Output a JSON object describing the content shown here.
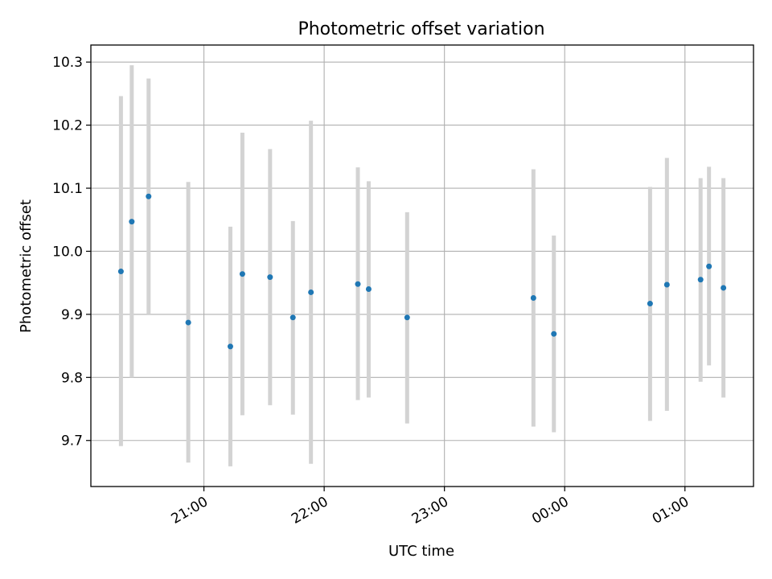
{
  "chart_data": {
    "type": "scatter",
    "title": "Photometric offset variation",
    "xlabel": "UTC time",
    "ylabel": "Photometric offset",
    "x_axis": {
      "unit": "hours after 21:00 UTC",
      "range": [
        -0.94,
        4.57
      ],
      "ticks": [
        {
          "value": 0,
          "label": "21:00"
        },
        {
          "value": 1,
          "label": "22:00"
        },
        {
          "value": 2,
          "label": "23:00"
        },
        {
          "value": 3,
          "label": "00:00"
        },
        {
          "value": 4,
          "label": "01:00"
        }
      ]
    },
    "y_axis": {
      "range": [
        9.627,
        10.327
      ],
      "ticks": [
        {
          "value": 9.7,
          "label": "9.7"
        },
        {
          "value": 9.8,
          "label": "9.8"
        },
        {
          "value": 9.9,
          "label": "9.9"
        },
        {
          "value": 10.0,
          "label": "10.0"
        },
        {
          "value": 10.1,
          "label": "10.1"
        },
        {
          "value": 10.2,
          "label": "10.2"
        },
        {
          "value": 10.3,
          "label": "10.3"
        }
      ]
    },
    "grid": true,
    "point_color": "#1f77b4",
    "errorbar_color": "#d3d3d3",
    "points": [
      {
        "x": -0.69,
        "y": 9.968,
        "ylow": 9.691,
        "yhigh": 10.246
      },
      {
        "x": -0.6,
        "y": 10.047,
        "ylow": 9.8,
        "yhigh": 10.295
      },
      {
        "x": -0.46,
        "y": 10.087,
        "ylow": 9.9,
        "yhigh": 10.274
      },
      {
        "x": -0.13,
        "y": 9.887,
        "ylow": 9.665,
        "yhigh": 10.11
      },
      {
        "x": 0.22,
        "y": 9.849,
        "ylow": 9.659,
        "yhigh": 10.039
      },
      {
        "x": 0.32,
        "y": 9.964,
        "ylow": 9.74,
        "yhigh": 10.188
      },
      {
        "x": 0.55,
        "y": 9.959,
        "ylow": 9.756,
        "yhigh": 10.162
      },
      {
        "x": 0.74,
        "y": 9.895,
        "ylow": 9.741,
        "yhigh": 10.048
      },
      {
        "x": 0.89,
        "y": 9.935,
        "ylow": 9.663,
        "yhigh": 10.207
      },
      {
        "x": 1.28,
        "y": 9.948,
        "ylow": 9.764,
        "yhigh": 10.133
      },
      {
        "x": 1.37,
        "y": 9.94,
        "ylow": 9.768,
        "yhigh": 10.111
      },
      {
        "x": 1.69,
        "y": 9.895,
        "ylow": 9.727,
        "yhigh": 10.062
      },
      {
        "x": 2.74,
        "y": 9.926,
        "ylow": 9.722,
        "yhigh": 10.13
      },
      {
        "x": 2.91,
        "y": 9.869,
        "ylow": 9.713,
        "yhigh": 10.025
      },
      {
        "x": 3.71,
        "y": 9.917,
        "ylow": 9.731,
        "yhigh": 10.102
      },
      {
        "x": 3.85,
        "y": 9.947,
        "ylow": 9.747,
        "yhigh": 10.148
      },
      {
        "x": 4.13,
        "y": 9.955,
        "ylow": 9.793,
        "yhigh": 10.116
      },
      {
        "x": 4.2,
        "y": 9.976,
        "ylow": 9.819,
        "yhigh": 10.134
      },
      {
        "x": 4.32,
        "y": 9.942,
        "ylow": 9.768,
        "yhigh": 10.116
      }
    ]
  }
}
